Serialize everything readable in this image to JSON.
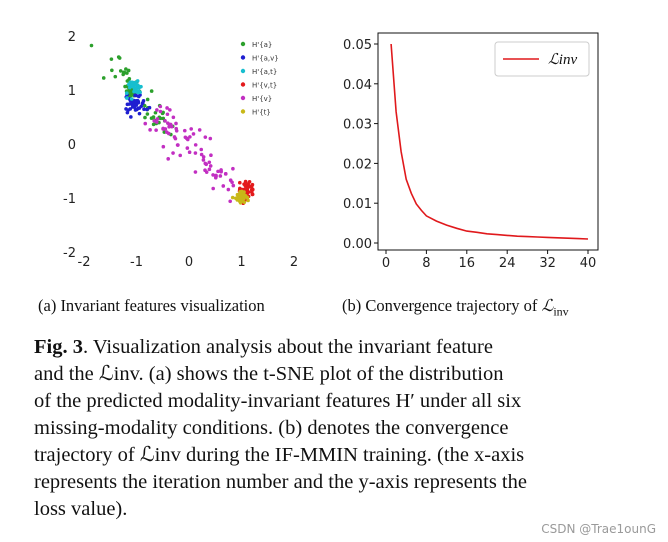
{
  "chart_data": [
    {
      "type": "scatter",
      "title": "",
      "xlabel": "",
      "ylabel": "",
      "xlim": [
        -2,
        2
      ],
      "ylim": [
        -2,
        2
      ],
      "x_ticks": [
        "-2",
        "-1",
        "0",
        "1",
        "2"
      ],
      "y_ticks": [
        "2",
        "1",
        "0",
        "-1",
        "-2"
      ],
      "legend_position": "top-right",
      "series": [
        {
          "name": "H'{a}",
          "color": "#2ca02c",
          "clusters": [
            [
              -1.25,
              1.35,
              0.12
            ],
            [
              -0.65,
              0.5,
              0.1
            ],
            [
              -1.1,
              1.0,
              0.06
            ]
          ],
          "count": 70
        },
        {
          "name": "H'{a,v}",
          "color": "#1f1fd0",
          "clusters": [
            [
              -1.0,
              0.75,
              0.09
            ]
          ],
          "count": 55
        },
        {
          "name": "H'{a,t}",
          "color": "#17becf",
          "clusters": [
            [
              -1.05,
              1.05,
              0.07
            ]
          ],
          "count": 35
        },
        {
          "name": "H'{v,t}",
          "color": "#e31a1c",
          "clusters": [
            [
              1.1,
              -0.85,
              0.08
            ]
          ],
          "count": 45
        },
        {
          "name": "H'{v}",
          "color": "#c22fc2",
          "clusters": [
            [
              0.0,
              -0.1,
              0.2
            ],
            [
              -0.5,
              0.4,
              0.12
            ],
            [
              0.5,
              -0.5,
              0.15
            ]
          ],
          "count": 80
        },
        {
          "name": "H'{t}",
          "color": "#c8b818",
          "clusters": [
            [
              1.0,
              -1.0,
              0.05
            ]
          ],
          "count": 60
        }
      ]
    },
    {
      "type": "line",
      "title": "",
      "xlabel": "",
      "ylabel": "",
      "xlim": [
        0,
        40
      ],
      "ylim": [
        0,
        0.05
      ],
      "x_ticks": [
        "0",
        "8",
        "16",
        "24",
        "32",
        "40"
      ],
      "y_ticks": [
        "0.05",
        "0.04",
        "0.03",
        "0.02",
        "0.01",
        "0.00"
      ],
      "legend_position": "top-right",
      "series": [
        {
          "name": "ℒinv",
          "color": "#e0191c",
          "x": [
            1,
            2,
            3,
            4,
            5,
            6,
            7,
            8,
            10,
            12,
            14,
            16,
            18,
            20,
            22,
            24,
            26,
            28,
            30,
            32,
            34,
            36,
            38,
            40
          ],
          "y": [
            0.05,
            0.033,
            0.023,
            0.016,
            0.0125,
            0.0098,
            0.0082,
            0.0068,
            0.0055,
            0.0045,
            0.0037,
            0.003,
            0.0027,
            0.0023,
            0.0021,
            0.0019,
            0.0017,
            0.0016,
            0.0015,
            0.0014,
            0.0013,
            0.0012,
            0.0011,
            0.001
          ]
        }
      ]
    }
  ],
  "captions": {
    "sub_a": "(a) Invariant features visualization",
    "sub_b_pre": "(b) Convergence trajectory of ",
    "fig_label": "Fig. 3",
    "line1": ". Visualization analysis about the invariant feature",
    "line2": "and the ℒinv. (a) shows the t-SNE plot of the distribution",
    "line3": "of the predicted modality-invariant features H′ under all six",
    "line4": "missing-modality conditions. (b) denotes the convergence",
    "line5": "trajectory of ℒinv during the IF-MMIN training. (the x-axis",
    "line6": "represents the iteration number and the y-axis represents the",
    "line7": "loss value)."
  },
  "watermark": "CSDN @Trae1ounG"
}
